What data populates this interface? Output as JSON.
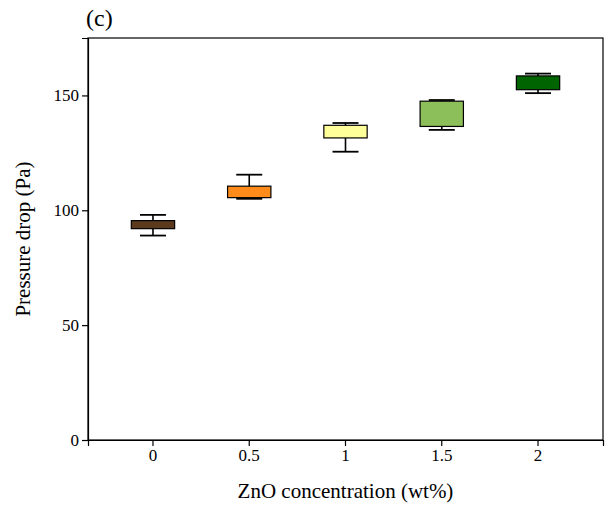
{
  "chart_data": {
    "type": "box",
    "panel_label": "(c)",
    "x_label": "ZnO concentration (wt%)",
    "y_label": "Pressure drop (Pa)",
    "categories": [
      "0",
      "0.5",
      "1",
      "1.5",
      "2"
    ],
    "whisker_low": [
      89,
      105,
      125.5,
      135,
      151
    ],
    "q1": [
      92,
      105.5,
      131.5,
      136.5,
      152.5
    ],
    "q3": [
      95.5,
      110.5,
      137,
      147.5,
      158.5
    ],
    "whisker_high": [
      98,
      115.5,
      138,
      148,
      159.5
    ],
    "colors": [
      "#5c3a1e",
      "#ff8c1a",
      "#ffff99",
      "#8cbf5a",
      "#006400"
    ],
    "ylim": [
      0,
      175
    ],
    "yticks": [
      0,
      50,
      100,
      150
    ],
    "grid": false
  }
}
